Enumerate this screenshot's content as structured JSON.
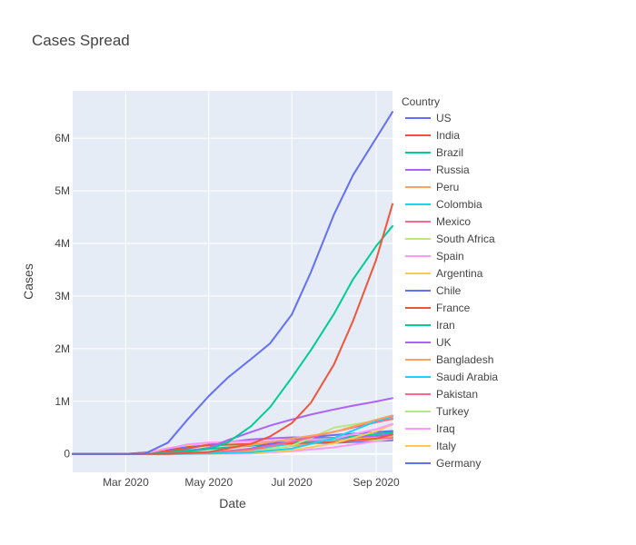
{
  "chart_data": {
    "type": "line",
    "title": "Cases Spread",
    "xlabel": "Date",
    "ylabel": "Cases",
    "legend_title": "Country",
    "legend_placement": "right",
    "grid": true,
    "x_domain": [
      "2020-01-22",
      "2020-09-13"
    ],
    "ylim": [
      -350000,
      6900000
    ],
    "x_ticks": [
      {
        "date": "2020-03-01",
        "label": "Mar 2020"
      },
      {
        "date": "2020-05-01",
        "label": "May 2020"
      },
      {
        "date": "2020-07-01",
        "label": "Jul 2020"
      },
      {
        "date": "2020-09-01",
        "label": "Sep 2020"
      }
    ],
    "y_ticks": [
      {
        "value": 0,
        "label": "0"
      },
      {
        "value": 1000000,
        "label": "1M"
      },
      {
        "value": 2000000,
        "label": "2M"
      },
      {
        "value": 3000000,
        "label": "3M"
      },
      {
        "value": 4000000,
        "label": "4M"
      },
      {
        "value": 5000000,
        "label": "5M"
      },
      {
        "value": 6000000,
        "label": "6M"
      }
    ],
    "colors": {
      "plot_bg": "#E5ECF6",
      "grid": "#ffffff"
    },
    "series": [
      {
        "name": "US",
        "color": "#636EFA",
        "points": [
          [
            "2020-01-22",
            0
          ],
          [
            "2020-02-15",
            15
          ],
          [
            "2020-03-01",
            75
          ],
          [
            "2020-03-15",
            3500
          ],
          [
            "2020-04-01",
            215000
          ],
          [
            "2020-04-15",
            640000
          ],
          [
            "2020-05-01",
            1100000
          ],
          [
            "2020-05-15",
            1450000
          ],
          [
            "2020-06-01",
            1800000
          ],
          [
            "2020-06-15",
            2100000
          ],
          [
            "2020-07-01",
            2650000
          ],
          [
            "2020-07-15",
            3450000
          ],
          [
            "2020-08-01",
            4550000
          ],
          [
            "2020-08-15",
            5300000
          ],
          [
            "2020-09-01",
            6000000
          ],
          [
            "2020-09-13",
            6500000
          ]
        ]
      },
      {
        "name": "India",
        "color": "#EF553B",
        "points": [
          [
            "2020-01-22",
            0
          ],
          [
            "2020-03-01",
            3
          ],
          [
            "2020-04-01",
            1998
          ],
          [
            "2020-05-01",
            35000
          ],
          [
            "2020-06-01",
            190000
          ],
          [
            "2020-06-15",
            332000
          ],
          [
            "2020-07-01",
            585000
          ],
          [
            "2020-07-15",
            970000
          ],
          [
            "2020-08-01",
            1700000
          ],
          [
            "2020-08-15",
            2530000
          ],
          [
            "2020-09-01",
            3690000
          ],
          [
            "2020-09-13",
            4750000
          ]
        ]
      },
      {
        "name": "Brazil",
        "color": "#00CC96",
        "points": [
          [
            "2020-01-22",
            0
          ],
          [
            "2020-03-01",
            2
          ],
          [
            "2020-04-01",
            6800
          ],
          [
            "2020-05-01",
            92000
          ],
          [
            "2020-05-15",
            220000
          ],
          [
            "2020-06-01",
            526000
          ],
          [
            "2020-06-15",
            888000
          ],
          [
            "2020-07-01",
            1450000
          ],
          [
            "2020-07-15",
            1970000
          ],
          [
            "2020-08-01",
            2660000
          ],
          [
            "2020-08-15",
            3320000
          ],
          [
            "2020-09-01",
            3950000
          ],
          [
            "2020-09-13",
            4330000
          ]
        ]
      },
      {
        "name": "Russia",
        "color": "#AB63FA",
        "points": [
          [
            "2020-01-22",
            0
          ],
          [
            "2020-03-01",
            2
          ],
          [
            "2020-04-01",
            2800
          ],
          [
            "2020-05-01",
            114000
          ],
          [
            "2020-05-15",
            262000
          ],
          [
            "2020-06-01",
            415000
          ],
          [
            "2020-06-15",
            537000
          ],
          [
            "2020-07-01",
            655000
          ],
          [
            "2020-07-15",
            747000
          ],
          [
            "2020-08-01",
            845000
          ],
          [
            "2020-08-15",
            917000
          ],
          [
            "2020-09-01",
            997000
          ],
          [
            "2020-09-13",
            1060000
          ]
        ]
      },
      {
        "name": "Peru",
        "color": "#FFA15A",
        "points": [
          [
            "2020-01-22",
            0
          ],
          [
            "2020-03-01",
            0
          ],
          [
            "2020-04-01",
            1400
          ],
          [
            "2020-05-01",
            40000
          ],
          [
            "2020-06-01",
            170000
          ],
          [
            "2020-07-01",
            288000
          ],
          [
            "2020-08-01",
            415000
          ],
          [
            "2020-09-01",
            650000
          ],
          [
            "2020-09-13",
            730000
          ]
        ]
      },
      {
        "name": "Colombia",
        "color": "#19D3F3",
        "points": [
          [
            "2020-01-22",
            0
          ],
          [
            "2020-03-01",
            0
          ],
          [
            "2020-04-01",
            1100
          ],
          [
            "2020-05-01",
            7000
          ],
          [
            "2020-06-01",
            30000
          ],
          [
            "2020-07-01",
            100000
          ],
          [
            "2020-08-01",
            300000
          ],
          [
            "2020-09-01",
            620000
          ],
          [
            "2020-09-13",
            710000
          ]
        ]
      },
      {
        "name": "Mexico",
        "color": "#FF6692",
        "points": [
          [
            "2020-01-22",
            0
          ],
          [
            "2020-03-01",
            5
          ],
          [
            "2020-04-01",
            1200
          ],
          [
            "2020-05-01",
            20000
          ],
          [
            "2020-06-01",
            90000
          ],
          [
            "2020-07-01",
            230000
          ],
          [
            "2020-08-01",
            420000
          ],
          [
            "2020-09-01",
            600000
          ],
          [
            "2020-09-13",
            670000
          ]
        ]
      },
      {
        "name": "South Africa",
        "color": "#B6E880",
        "points": [
          [
            "2020-01-22",
            0
          ],
          [
            "2020-03-01",
            0
          ],
          [
            "2020-04-01",
            1400
          ],
          [
            "2020-05-01",
            5600
          ],
          [
            "2020-06-01",
            33000
          ],
          [
            "2020-07-01",
            160000
          ],
          [
            "2020-07-15",
            300000
          ],
          [
            "2020-08-01",
            500000
          ],
          [
            "2020-09-01",
            630000
          ],
          [
            "2020-09-13",
            650000
          ]
        ]
      },
      {
        "name": "Spain",
        "color": "#FF97FF",
        "points": [
          [
            "2020-01-22",
            0
          ],
          [
            "2020-03-01",
            84
          ],
          [
            "2020-03-15",
            7800
          ],
          [
            "2020-04-01",
            104000
          ],
          [
            "2020-04-15",
            180000
          ],
          [
            "2020-05-01",
            215000
          ],
          [
            "2020-06-01",
            240000
          ],
          [
            "2020-07-01",
            250000
          ],
          [
            "2020-08-01",
            290000
          ],
          [
            "2020-09-01",
            470000
          ],
          [
            "2020-09-13",
            570000
          ]
        ]
      },
      {
        "name": "Argentina",
        "color": "#FECB52",
        "points": [
          [
            "2020-01-22",
            0
          ],
          [
            "2020-03-01",
            0
          ],
          [
            "2020-04-01",
            1000
          ],
          [
            "2020-05-01",
            4400
          ],
          [
            "2020-06-01",
            17000
          ],
          [
            "2020-07-01",
            67000
          ],
          [
            "2020-08-01",
            200000
          ],
          [
            "2020-09-01",
            430000
          ],
          [
            "2020-09-13",
            560000
          ]
        ]
      },
      {
        "name": "Chile",
        "color": "#636EFA",
        "points": [
          [
            "2020-01-22",
            0
          ],
          [
            "2020-03-01",
            0
          ],
          [
            "2020-04-01",
            3000
          ],
          [
            "2020-05-01",
            17000
          ],
          [
            "2020-06-01",
            100000
          ],
          [
            "2020-07-01",
            280000
          ],
          [
            "2020-08-01",
            360000
          ],
          [
            "2020-09-01",
            415000
          ],
          [
            "2020-09-13",
            435000
          ]
        ]
      },
      {
        "name": "France",
        "color": "#EF553B",
        "points": [
          [
            "2020-01-22",
            0
          ],
          [
            "2020-03-01",
            130
          ],
          [
            "2020-04-01",
            57000
          ],
          [
            "2020-05-01",
            168000
          ],
          [
            "2020-06-01",
            189000
          ],
          [
            "2020-07-01",
            202000
          ],
          [
            "2020-08-01",
            225000
          ],
          [
            "2020-09-01",
            290000
          ],
          [
            "2020-09-13",
            370000
          ]
        ]
      },
      {
        "name": "Iran",
        "color": "#00CC96",
        "points": [
          [
            "2020-01-22",
            0
          ],
          [
            "2020-03-01",
            980
          ],
          [
            "2020-04-01",
            47000
          ],
          [
            "2020-05-01",
            95000
          ],
          [
            "2020-06-01",
            154000
          ],
          [
            "2020-07-01",
            230000
          ],
          [
            "2020-08-01",
            306000
          ],
          [
            "2020-09-01",
            375000
          ],
          [
            "2020-09-13",
            405000
          ]
        ]
      },
      {
        "name": "UK",
        "color": "#AB63FA",
        "points": [
          [
            "2020-01-22",
            0
          ],
          [
            "2020-03-01",
            36
          ],
          [
            "2020-04-01",
            30000
          ],
          [
            "2020-05-01",
            178000
          ],
          [
            "2020-06-01",
            277000
          ],
          [
            "2020-07-01",
            314000
          ],
          [
            "2020-08-01",
            305000
          ],
          [
            "2020-09-01",
            340000
          ],
          [
            "2020-09-13",
            370000
          ]
        ]
      },
      {
        "name": "Bangladesh",
        "color": "#FFA15A",
        "points": [
          [
            "2020-01-22",
            0
          ],
          [
            "2020-03-01",
            0
          ],
          [
            "2020-04-01",
            54
          ],
          [
            "2020-05-01",
            8200
          ],
          [
            "2020-06-01",
            50000
          ],
          [
            "2020-07-01",
            150000
          ],
          [
            "2020-08-01",
            240000
          ],
          [
            "2020-09-01",
            315000
          ],
          [
            "2020-09-13",
            336000
          ]
        ]
      },
      {
        "name": "Saudi Arabia",
        "color": "#19D3F3",
        "points": [
          [
            "2020-01-22",
            0
          ],
          [
            "2020-03-01",
            0
          ],
          [
            "2020-04-01",
            1700
          ],
          [
            "2020-05-01",
            24000
          ],
          [
            "2020-06-01",
            87000
          ],
          [
            "2020-07-01",
            195000
          ],
          [
            "2020-08-01",
            278000
          ],
          [
            "2020-09-01",
            316000
          ],
          [
            "2020-09-13",
            325000
          ]
        ]
      },
      {
        "name": "Pakistan",
        "color": "#FF6692",
        "points": [
          [
            "2020-01-22",
            0
          ],
          [
            "2020-03-01",
            4
          ],
          [
            "2020-04-01",
            2100
          ],
          [
            "2020-05-01",
            17000
          ],
          [
            "2020-06-01",
            72000
          ],
          [
            "2020-07-01",
            213000
          ],
          [
            "2020-08-01",
            280000
          ],
          [
            "2020-09-01",
            297000
          ],
          [
            "2020-09-13",
            302000
          ]
        ]
      },
      {
        "name": "Turkey",
        "color": "#B6E880",
        "points": [
          [
            "2020-01-22",
            0
          ],
          [
            "2020-03-01",
            0
          ],
          [
            "2020-04-01",
            15000
          ],
          [
            "2020-05-01",
            122000
          ],
          [
            "2020-06-01",
            164000
          ],
          [
            "2020-07-01",
            201000
          ],
          [
            "2020-08-01",
            232000
          ],
          [
            "2020-09-01",
            273000
          ],
          [
            "2020-09-13",
            291000
          ]
        ]
      },
      {
        "name": "Iraq",
        "color": "#FF97FF",
        "points": [
          [
            "2020-01-22",
            0
          ],
          [
            "2020-03-01",
            19
          ],
          [
            "2020-04-01",
            700
          ],
          [
            "2020-05-01",
            2100
          ],
          [
            "2020-06-01",
            7000
          ],
          [
            "2020-07-01",
            51000
          ],
          [
            "2020-08-01",
            125000
          ],
          [
            "2020-09-01",
            240000
          ],
          [
            "2020-09-13",
            290000
          ]
        ]
      },
      {
        "name": "Italy",
        "color": "#FECB52",
        "points": [
          [
            "2020-01-22",
            0
          ],
          [
            "2020-02-22",
            62
          ],
          [
            "2020-03-01",
            1700
          ],
          [
            "2020-03-15",
            25000
          ],
          [
            "2020-04-01",
            110000
          ],
          [
            "2020-04-15",
            165000
          ],
          [
            "2020-05-01",
            207000
          ],
          [
            "2020-06-01",
            233000
          ],
          [
            "2020-07-01",
            241000
          ],
          [
            "2020-08-01",
            248000
          ],
          [
            "2020-09-01",
            270000
          ],
          [
            "2020-09-13",
            287000
          ]
        ]
      },
      {
        "name": "Germany",
        "color": "#636EFA",
        "points": [
          [
            "2020-01-22",
            0
          ],
          [
            "2020-03-01",
            130
          ],
          [
            "2020-03-15",
            5800
          ],
          [
            "2020-04-01",
            77000
          ],
          [
            "2020-04-15",
            134000
          ],
          [
            "2020-05-01",
            164000
          ],
          [
            "2020-06-01",
            183000
          ],
          [
            "2020-07-01",
            195000
          ],
          [
            "2020-08-01",
            211000
          ],
          [
            "2020-09-01",
            245000
          ],
          [
            "2020-09-13",
            260000
          ]
        ]
      }
    ]
  }
}
